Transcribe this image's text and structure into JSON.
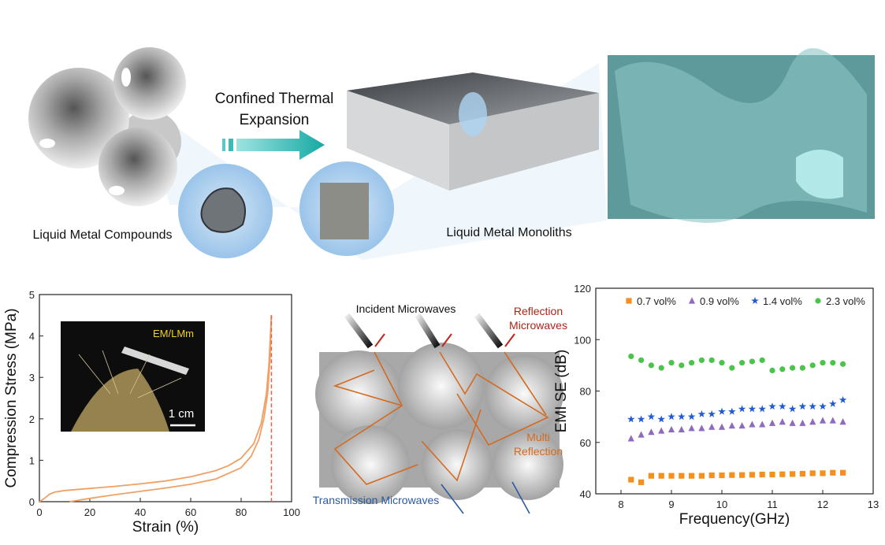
{
  "schematic": {
    "process_label": [
      "Confined Thermal",
      "Expansion"
    ],
    "left_label": "Liquid Metal Compounds",
    "right_label": "Liquid Metal Monoliths",
    "inset_label": "EM/LMm",
    "scale_bar": "1 cm",
    "incident": "Incident Microwaves",
    "reflection": [
      "Reflection",
      "Microwaves"
    ],
    "multi": [
      "Multi",
      "Reflection"
    ],
    "transmission": "Transmission Microwaves"
  },
  "chart_data": [
    {
      "type": "line",
      "xlabel": "Strain (%)",
      "ylabel": "Compression Stress (MPa)",
      "xlim": [
        0,
        100
      ],
      "xticks": [
        0,
        20,
        40,
        60,
        80,
        100
      ],
      "ylim": [
        0,
        5
      ],
      "yticks": [
        0,
        1,
        2,
        3,
        4,
        5
      ],
      "color": "#f0a064",
      "vline": 92,
      "vline_color": "#e8604c",
      "series": [
        {
          "x": [
            0,
            2,
            4,
            6,
            10,
            20,
            30,
            40,
            50,
            60,
            70,
            75,
            80,
            85,
            88,
            90,
            91,
            92
          ],
          "values": [
            0,
            0.08,
            0.18,
            0.23,
            0.27,
            0.32,
            0.37,
            0.43,
            0.5,
            0.6,
            0.75,
            0.87,
            1.05,
            1.4,
            1.9,
            2.6,
            3.3,
            4.5
          ]
        },
        {
          "x": [
            92,
            91.5,
            90.5,
            89,
            87,
            84,
            80,
            70,
            60,
            50,
            40,
            30,
            20,
            12
          ],
          "values": [
            4.5,
            3.5,
            2.6,
            2.0,
            1.5,
            1.1,
            0.82,
            0.55,
            0.42,
            0.33,
            0.25,
            0.17,
            0.08,
            0
          ]
        }
      ]
    },
    {
      "type": "scatter",
      "xlabel": "Frequency(GHz)",
      "ylabel": "EMI SE (dB)",
      "xlim": [
        7.5,
        13
      ],
      "xticks": [
        8,
        9,
        10,
        11,
        12,
        13
      ],
      "ylim": [
        40,
        120
      ],
      "yticks": [
        40,
        60,
        80,
        100,
        120
      ],
      "x": [
        8.2,
        8.4,
        8.6,
        8.8,
        9.0,
        9.2,
        9.4,
        9.6,
        9.8,
        10.0,
        10.2,
        10.4,
        10.6,
        10.8,
        11.0,
        11.2,
        11.4,
        11.6,
        11.8,
        12.0,
        12.2,
        12.4
      ],
      "series": [
        {
          "name": "0.7 vol%",
          "color": "#f5901e",
          "marker": "square",
          "values": [
            45.5,
            44.5,
            47,
            47,
            47,
            47,
            47,
            47,
            47.2,
            47.2,
            47.3,
            47.3,
            47.4,
            47.5,
            47.5,
            47.6,
            47.7,
            47.8,
            48,
            48,
            48.2,
            48.2
          ]
        },
        {
          "name": "0.9 vol%",
          "color": "#8e6bbf",
          "marker": "triangle",
          "values": [
            61.5,
            63,
            64,
            64.5,
            65,
            65,
            65.5,
            65.5,
            66,
            66,
            66.5,
            66.5,
            67,
            67,
            67.5,
            68,
            67.5,
            67.5,
            68,
            68.5,
            68.5,
            68
          ]
        },
        {
          "name": "1.4 vol%",
          "color": "#1f5bd6",
          "marker": "star",
          "values": [
            69,
            69,
            70,
            69,
            70,
            70,
            70,
            71,
            71,
            72,
            72,
            73,
            73,
            73,
            74,
            74,
            73,
            74,
            74,
            74,
            75,
            76.5
          ]
        },
        {
          "name": "2.3 vol%",
          "color": "#4cc44c",
          "marker": "circle",
          "values": [
            93.5,
            92,
            90,
            89,
            91,
            90,
            91,
            92,
            92,
            91,
            89,
            91,
            91.5,
            92,
            88,
            88.5,
            89,
            89,
            90,
            91,
            91,
            90.5
          ]
        }
      ]
    }
  ]
}
